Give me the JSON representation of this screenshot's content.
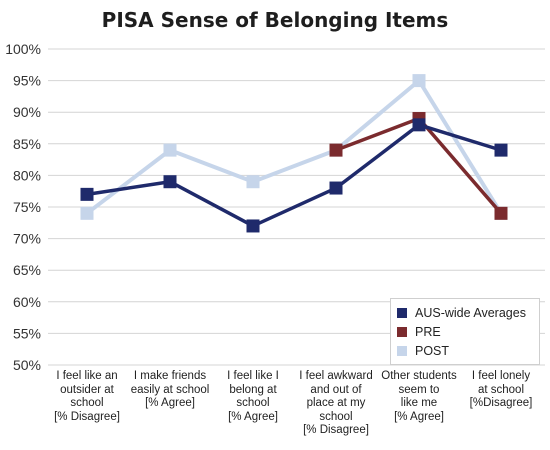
{
  "chart_data": {
    "type": "line",
    "title": "PISA Sense of Belonging Items",
    "categories": [
      [
        "I feel like an",
        "outsider at",
        "school",
        "[% Disagree]"
      ],
      [
        "I make friends",
        "easily at school",
        "[% Agree]"
      ],
      [
        "I feel like I",
        "belong at",
        "school",
        "[% Agree]"
      ],
      [
        "I feel awkward",
        "and out of",
        "place at my",
        "school",
        "[% Disagree]"
      ],
      [
        "Other students",
        "seem to",
        "like me",
        "[% Agree]"
      ],
      [
        "I feel lonely",
        "at school",
        "[%Disagree]"
      ]
    ],
    "ylim": [
      50,
      100
    ],
    "yticks": [
      "50%",
      "55%",
      "60%",
      "65%",
      "70%",
      "75%",
      "80%",
      "85%",
      "90%",
      "95%",
      "100%"
    ],
    "grid": true,
    "legend_position": "bottom-right",
    "series": [
      {
        "name": "POST",
        "color": "#c6d5ea",
        "values": [
          74,
          84,
          79,
          84,
          95,
          74
        ]
      },
      {
        "name": "PRE",
        "color": "#7b2b2e",
        "values": [
          null,
          null,
          null,
          84,
          89,
          74
        ]
      },
      {
        "name": "AUS-wide Averages",
        "color": "#1f2a6b",
        "values": [
          77,
          79,
          72,
          78,
          88,
          84
        ]
      }
    ],
    "legend_order": [
      "AUS-wide Averages",
      "PRE",
      "POST"
    ]
  }
}
